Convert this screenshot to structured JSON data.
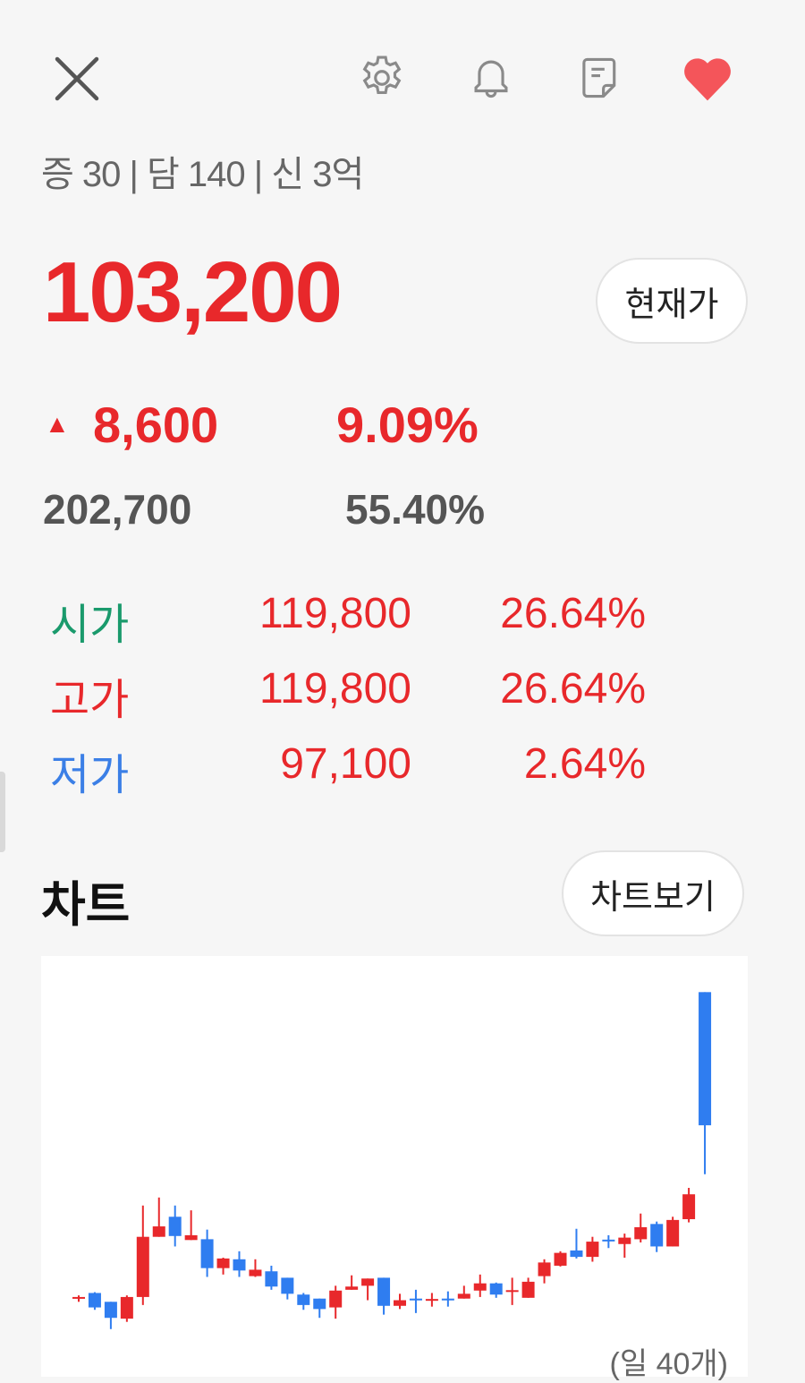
{
  "header": {
    "icons": [
      "close-icon",
      "gear-icon",
      "bell-icon",
      "memo-icon",
      "heart-icon"
    ],
    "heart_color": "#f4555a"
  },
  "meta_line": "증 30 | 담 140 | 신 3억",
  "quote": {
    "price": "103,200",
    "current_price_button": "현재가",
    "change_arrow": "▲",
    "change": "8,600",
    "change_rate": "9.09%",
    "volume": "202,700",
    "volume_rate": "55.40%"
  },
  "ohlc": [
    {
      "label": "시가",
      "value": "119,800",
      "rate": "26.64%",
      "label_color": "#1a9a6c"
    },
    {
      "label": "고가",
      "value": "119,800",
      "rate": "26.64%",
      "label_color": "#e8282b"
    },
    {
      "label": "저가",
      "value": "97,100",
      "rate": "2.64%",
      "label_color": "#3b7fe6"
    }
  ],
  "chart_section": {
    "title": "차트",
    "view_button": "차트보기",
    "footer_note": "(일 40개)"
  },
  "colors": {
    "up": "#e8282b",
    "down": "#2f7df0",
    "accent": "#e8282b"
  },
  "chart_data": {
    "type": "candlestick",
    "period": "daily",
    "count": 40,
    "ylim": [
      73200,
      124300
    ],
    "grid": false,
    "candles": [
      [
        81800,
        82000,
        81200,
        81800
      ],
      [
        82300,
        82400,
        80200,
        80500
      ],
      [
        81200,
        81200,
        77800,
        79200
      ],
      [
        79100,
        82000,
        78700,
        81800
      ],
      [
        81800,
        93200,
        80800,
        89300
      ],
      [
        89300,
        94200,
        89300,
        90600
      ],
      [
        91800,
        93200,
        88100,
        89400
      ],
      [
        88900,
        92600,
        88900,
        89500
      ],
      [
        89000,
        90200,
        84300,
        85400
      ],
      [
        85400,
        86700,
        84600,
        86600
      ],
      [
        86500,
        87500,
        84300,
        85100
      ],
      [
        84400,
        86500,
        84300,
        85200
      ],
      [
        85000,
        85700,
        82700,
        83100
      ],
      [
        84200,
        84200,
        81500,
        82200
      ],
      [
        82100,
        82300,
        80200,
        80800
      ],
      [
        81600,
        81600,
        79200,
        80300
      ],
      [
        80500,
        83200,
        79100,
        82600
      ],
      [
        82700,
        84500,
        82700,
        83100
      ],
      [
        83200,
        84100,
        81400,
        84100
      ],
      [
        84200,
        84200,
        79600,
        80700
      ],
      [
        80700,
        82200,
        80300,
        81400
      ],
      [
        81600,
        82700,
        79800,
        81550
      ],
      [
        81500,
        82300,
        80600,
        81550
      ],
      [
        81600,
        82500,
        80600,
        81550
      ],
      [
        81600,
        83200,
        81600,
        82200
      ],
      [
        82600,
        84600,
        81800,
        83500
      ],
      [
        83500,
        83600,
        81700,
        82100
      ],
      [
        82550,
        84200,
        80800,
        82650
      ],
      [
        81700,
        84200,
        81700,
        83700
      ],
      [
        84400,
        86500,
        83500,
        86100
      ],
      [
        85700,
        87500,
        85600,
        87300
      ],
      [
        87600,
        90300,
        86600,
        86800
      ],
      [
        86800,
        89300,
        86200,
        88700
      ],
      [
        88950,
        89500,
        87900,
        88850
      ],
      [
        88400,
        89700,
        86700,
        89200
      ],
      [
        89000,
        92200,
        88600,
        90500
      ],
      [
        90900,
        91200,
        87400,
        88100
      ],
      [
        88100,
        91800,
        88100,
        91400
      ],
      [
        91500,
        95400,
        91100,
        94600
      ],
      [
        119800,
        119800,
        97100,
        103200
      ]
    ],
    "candle_format": [
      "open",
      "high",
      "low",
      "close"
    ]
  }
}
